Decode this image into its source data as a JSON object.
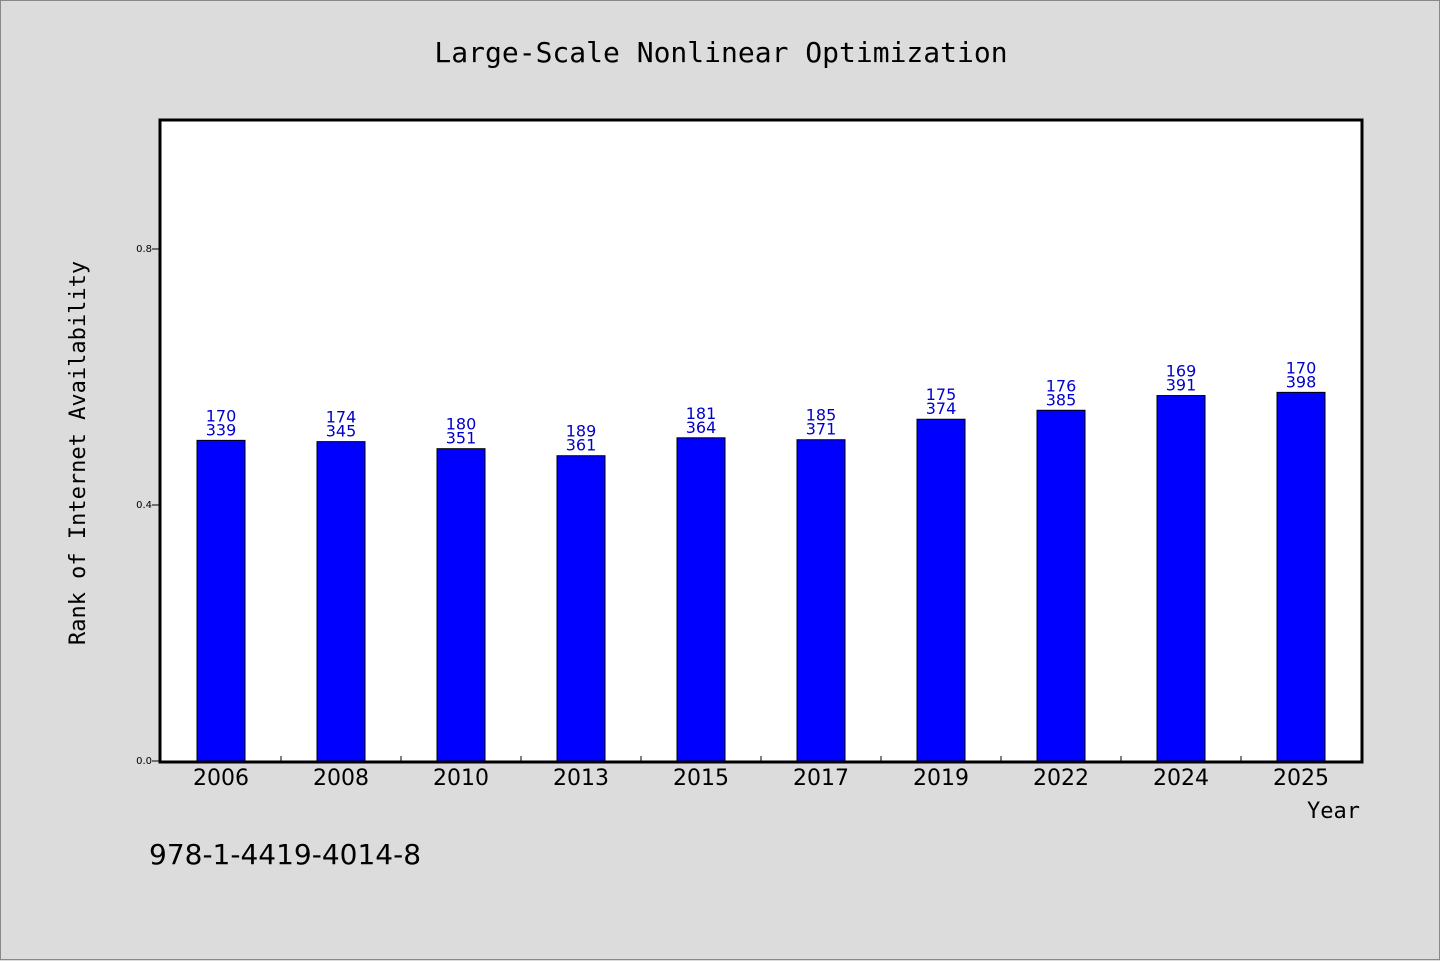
{
  "chart_data": {
    "type": "bar",
    "title": "Large-Scale Nonlinear Optimization",
    "xlabel": "Year",
    "ylabel": "Rank of Internet Availability",
    "categories": [
      "2006",
      "2008",
      "2010",
      "2013",
      "2015",
      "2017",
      "2019",
      "2022",
      "2024",
      "2025"
    ],
    "values": [
      0.501,
      0.499,
      0.488,
      0.477,
      0.505,
      0.502,
      0.534,
      0.548,
      0.571,
      0.576
    ],
    "data_labels": [
      [
        "170",
        "339"
      ],
      [
        "174",
        "345"
      ],
      [
        "180",
        "351"
      ],
      [
        "189",
        "361"
      ],
      [
        "181",
        "364"
      ],
      [
        "185",
        "371"
      ],
      [
        "175",
        "374"
      ],
      [
        "176",
        "385"
      ],
      [
        "169",
        "391"
      ],
      [
        "170",
        "398"
      ]
    ],
    "yticks": [
      "0.0",
      "0.4",
      "0.8"
    ],
    "ytick_values": [
      0.0,
      0.4,
      0.8
    ],
    "ylim": [
      0,
      1.0
    ],
    "bar_color": "#0000ff",
    "label_color": "#0000cc",
    "grid": false,
    "legend": "none"
  },
  "footer": {
    "isbn": "978-1-4419-4014-8"
  }
}
